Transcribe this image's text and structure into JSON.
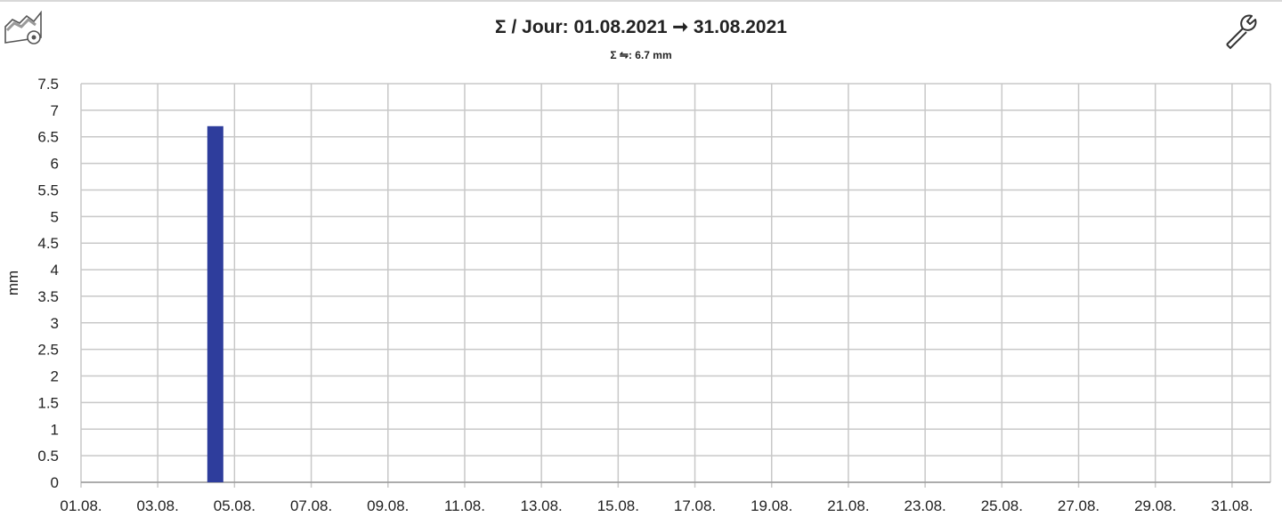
{
  "header": {
    "title": "Σ / Jour: 01.08.2021 ➞ 31.08.2021",
    "subtitle_prefix": "Σ",
    "subtitle_icon": "precipitation-icon",
    "subtitle_value": ": 6.7 mm",
    "left_icon": "chart-settings-icon",
    "right_icon": "wrench-icon"
  },
  "chart_data": {
    "type": "bar",
    "title": "Σ / Jour: 01.08.2021 ➞ 31.08.2021",
    "ylabel": "mm",
    "xlabel": "",
    "ylim": [
      0,
      7.5
    ],
    "xlim": [
      "01.08.2021",
      "01.09.2021"
    ],
    "grid": true,
    "bar_color": "#2e3d9c",
    "yticks": [
      "0",
      "0.5",
      "1",
      "1.5",
      "2",
      "2.5",
      "3",
      "3.5",
      "4",
      "4.5",
      "5",
      "5.5",
      "6",
      "6.5",
      "7",
      "7.5"
    ],
    "xticks": [
      "01.08.",
      "03.08.",
      "05.08.",
      "07.08.",
      "09.08.",
      "11.08.",
      "13.08.",
      "15.08.",
      "17.08.",
      "19.08.",
      "21.08.",
      "23.08.",
      "25.08.",
      "27.08.",
      "29.08.",
      "31.08."
    ],
    "categories": [
      "04.08."
    ],
    "values": [
      6.7
    ]
  }
}
